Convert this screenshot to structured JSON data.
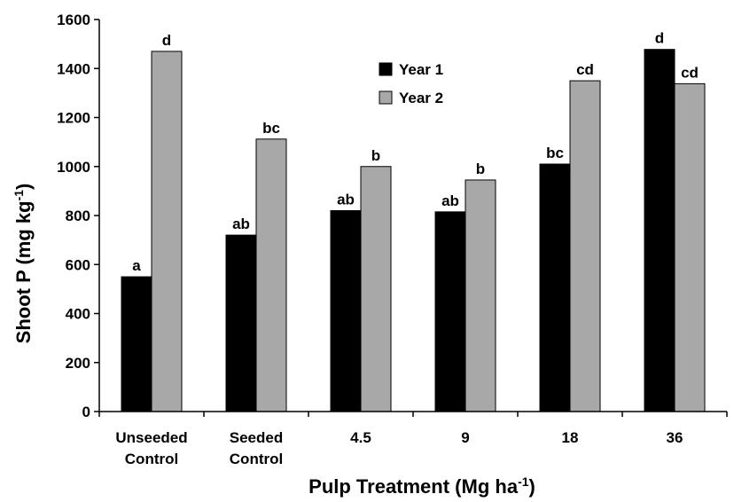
{
  "chart_data": {
    "type": "bar",
    "title": "",
    "ylabel": "Shoot P (mg kg",
    "ylabel_sup": "-1",
    "ylabel_end": ")",
    "xlabel": "Pulp Treatment (Mg ha",
    "xlabel_sup": "-1",
    "xlabel_end": ")",
    "ylim": [
      0,
      1600
    ],
    "yticks": [
      "0",
      "200",
      "400",
      "600",
      "800",
      "1000",
      "1200",
      "1400",
      "1600"
    ],
    "ytick_values": [
      0,
      200,
      400,
      600,
      800,
      1000,
      1200,
      1400,
      1600
    ],
    "grid": false,
    "legend_position": "top-center",
    "categories": [
      [
        "Unseeded",
        "Control"
      ],
      [
        "Seeded",
        "Control"
      ],
      [
        "4.5"
      ],
      [
        "9"
      ],
      [
        "18"
      ],
      [
        "36"
      ]
    ],
    "series": [
      {
        "name": "Year 1",
        "color": "#000000",
        "values": [
          550,
          720,
          820,
          815,
          1010,
          1478
        ],
        "labels": [
          "a",
          "ab",
          "ab",
          "ab",
          "bc",
          "d"
        ]
      },
      {
        "name": "Year 2",
        "color": "#a8a8a8",
        "values": [
          1470,
          1112,
          1000,
          945,
          1350,
          1338
        ],
        "labels": [
          "d",
          "bc",
          "b",
          "b",
          "cd",
          "cd"
        ]
      }
    ]
  }
}
